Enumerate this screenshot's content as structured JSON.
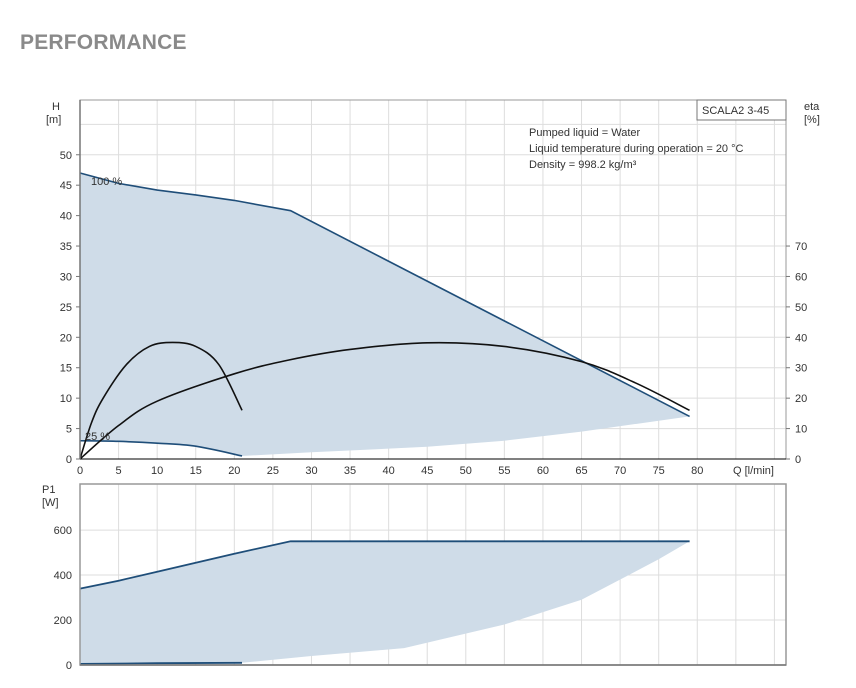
{
  "page": {
    "title": "PERFORMANCE"
  },
  "colors": {
    "fill": "#cfdce8",
    "curve": "#1f4e79",
    "eta": "#111111",
    "grid": "#dddddd"
  },
  "chart_data": [
    {
      "type": "line",
      "title": "SCALA2 3-45",
      "xlabel": "Q [l/min]",
      "ylabel": "H",
      "yunit": "[m]",
      "y2label": "eta",
      "y2unit": "[%]",
      "xlim": [
        0,
        91.5
      ],
      "ylim": [
        0,
        59
      ],
      "y2lim": [
        0,
        118
      ],
      "xticks": [
        0,
        5,
        10,
        15,
        20,
        25,
        30,
        35,
        40,
        45,
        50,
        55,
        60,
        65,
        70,
        75,
        80
      ],
      "yticks": [
        0,
        5,
        10,
        15,
        20,
        25,
        30,
        35,
        40,
        45,
        50
      ],
      "y2ticks": [
        0,
        10,
        20,
        30,
        40,
        50,
        60,
        70
      ],
      "annotations": [
        "Pumped liquid = Water",
        "Liquid temperature during operation = 20 °C",
        "Density = 998.2 kg/m³"
      ],
      "curve_labels": [
        "100 %",
        "25 %"
      ],
      "series": [
        {
          "name": "100 %",
          "axis": "H",
          "x": [
            0,
            5,
            10,
            15,
            20,
            27.3,
            79
          ],
          "y": [
            47,
            45.3,
            44.2,
            43.4,
            42.5,
            40.8,
            7
          ]
        },
        {
          "name": "25 %",
          "axis": "H",
          "x": [
            0,
            5,
            10,
            15,
            21
          ],
          "y": [
            3,
            2.9,
            2.6,
            2.1,
            0.5
          ]
        },
        {
          "name": "min boundary",
          "axis": "H",
          "x": [
            21,
            30,
            45,
            55,
            65,
            79
          ],
          "y": [
            0.5,
            1.1,
            2,
            3,
            4.5,
            7
          ]
        },
        {
          "name": "eta 25 %",
          "axis": "eta",
          "x": [
            0,
            1.5,
            3,
            6,
            9,
            12,
            15,
            18,
            21
          ],
          "y": [
            0,
            12,
            20,
            31,
            37,
            38.3,
            37,
            31,
            16
          ]
        },
        {
          "name": "eta 100 %",
          "axis": "eta",
          "x": [
            0,
            5,
            10,
            20,
            27,
            35,
            45,
            55,
            65,
            72,
            79
          ],
          "y": [
            0,
            11,
            19,
            28,
            32.5,
            36,
            38.2,
            37,
            32,
            25,
            16
          ]
        }
      ]
    },
    {
      "type": "line",
      "ylabel": "P1",
      "yunit": "[W]",
      "xlim": [
        0,
        91.5
      ],
      "ylim": [
        0,
        805
      ],
      "yticks": [
        0,
        200,
        400,
        600
      ],
      "series": [
        {
          "name": "P1 100 %",
          "x": [
            0,
            5,
            10,
            20,
            27.3,
            79
          ],
          "y": [
            340,
            375,
            415,
            495,
            550,
            550
          ]
        },
        {
          "name": "P1 25 %",
          "x": [
            0,
            10,
            21
          ],
          "y": [
            5,
            8,
            10
          ]
        },
        {
          "name": "P1 min boundary",
          "x": [
            21,
            30,
            42,
            55,
            65,
            75,
            79
          ],
          "y": [
            10,
            40,
            75,
            180,
            290,
            470,
            550
          ]
        }
      ]
    }
  ]
}
